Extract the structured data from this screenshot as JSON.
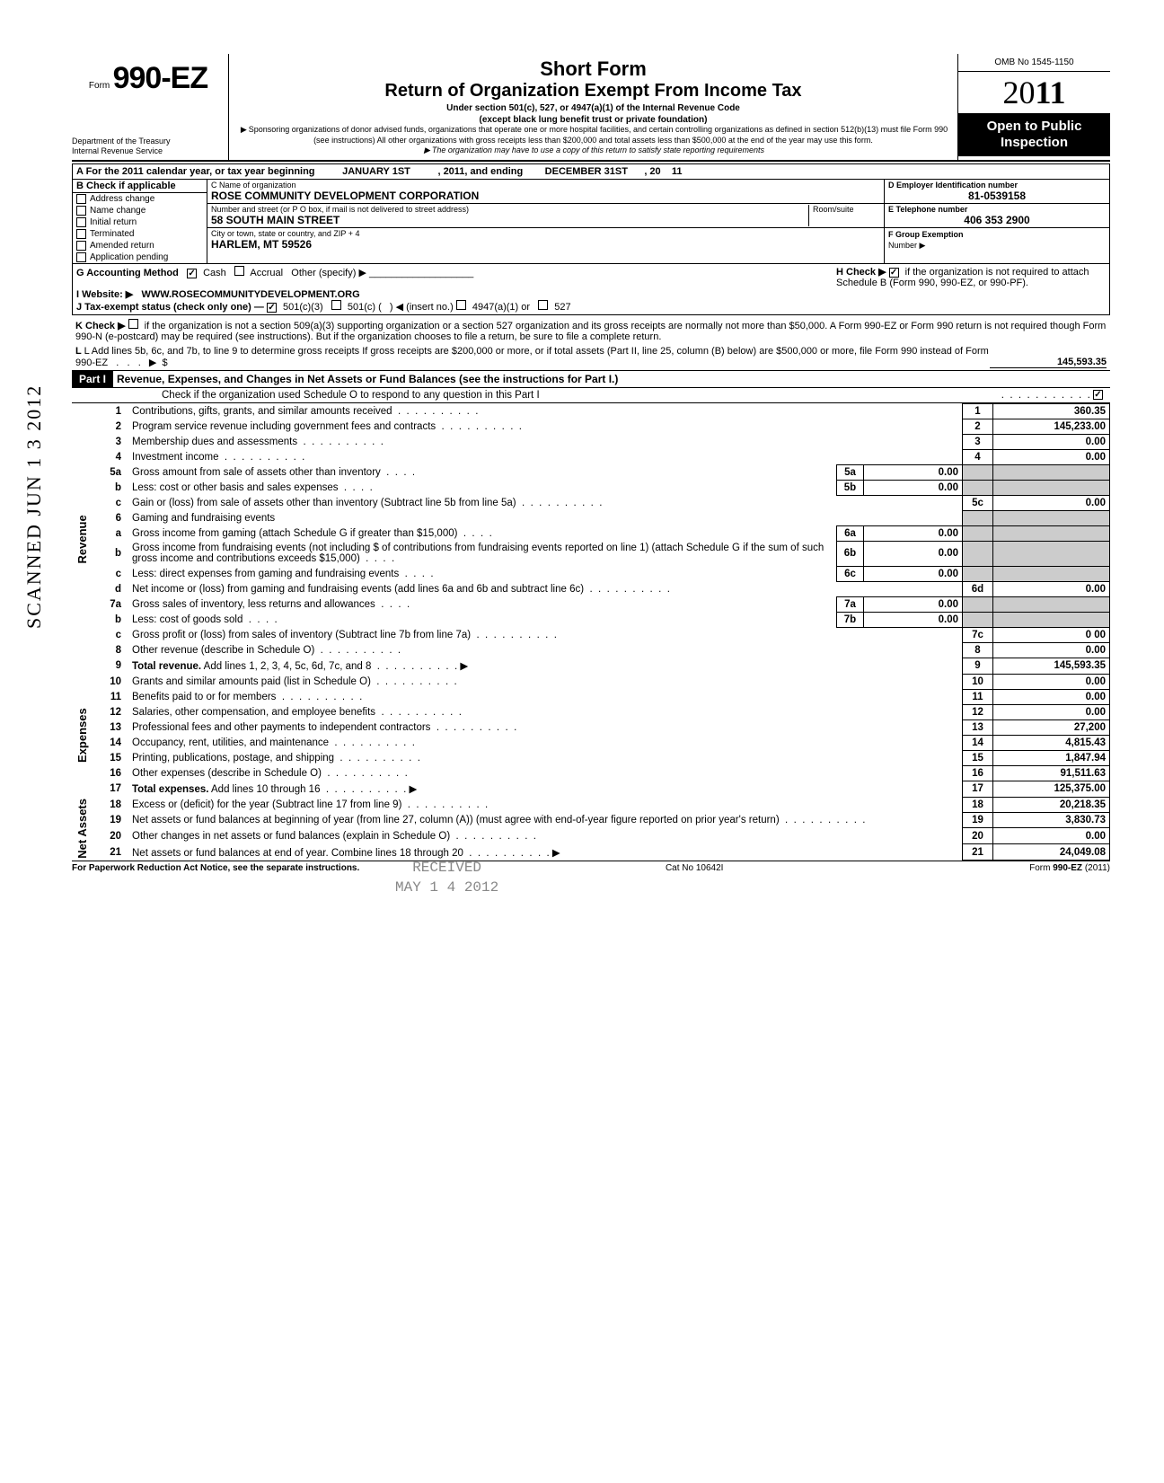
{
  "header": {
    "form_prefix": "Form",
    "form_number": "990-EZ",
    "dept1": "Department of the Treasury",
    "dept2": "Internal Revenue Service",
    "title_short": "Short Form",
    "title_main": "Return of Organization Exempt From Income Tax",
    "subtitle1": "Under section 501(c), 527, or 4947(a)(1) of the Internal Revenue Code",
    "subtitle2": "(except black lung benefit trust or private foundation)",
    "note1": "Sponsoring organizations of donor advised funds, organizations that operate one or more hospital facilities, and certain controlling organizations as defined in section 512(b)(13) must file Form 990 (see instructions) All other organizations with gross receipts less than $200,000 and total assets less than $500,000 at the end of the year may use this form.",
    "note2": "The organization may have to use a copy of this return to satisfy state reporting requirements",
    "omb": "OMB No 1545-1150",
    "year_prefix": "20",
    "year_bold": "11",
    "open_public": "Open to Public Inspection"
  },
  "section_a": {
    "line_a": "A  For the 2011 calendar year, or tax year beginning",
    "begin_date": "JANUARY 1ST",
    "mid": ", 2011, and ending",
    "end_date": "DECEMBER 31ST",
    "end_year_lbl": ", 20",
    "end_year": "11",
    "b_label": "B  Check if applicable",
    "b_items": [
      "Address change",
      "Name change",
      "Initial return",
      "Terminated",
      "Amended return",
      "Application pending"
    ],
    "c_label": "C  Name of organization",
    "c_value": "ROSE COMMUNITY DEVELOPMENT CORPORATION",
    "c_street_label": "Number and street (or P O box, if mail is not delivered to street address)",
    "c_room": "Room/suite",
    "c_street": "58 SOUTH MAIN STREET",
    "c_city_label": "City or town, state or country, and ZIP + 4",
    "c_city": "HARLEM, MT 59526",
    "d_label": "D Employer Identification number",
    "d_value": "81-0539158",
    "e_label": "E  Telephone number",
    "e_value": "406 353 2900",
    "f_label": "F  Group Exemption",
    "f_label2": "Number ▶"
  },
  "lines_ghij": {
    "g": "G  Accounting Method",
    "g_cash": "Cash",
    "g_accrual": "Accrual",
    "g_other": "Other (specify) ▶",
    "h": "H  Check ▶",
    "h_text": "if the organization is not required to attach Schedule B (Form 990, 990-EZ, or 990-PF).",
    "i": "I   Website: ▶",
    "i_val": "WWW.ROSECOMMUNITYDEVELOPMENT.ORG",
    "j": "J  Tax-exempt status (check only one) —",
    "j_501c3": "501(c)(3)",
    "j_501c": "501(c) (",
    "j_insert": ") ◀ (insert no.)",
    "j_4947": "4947(a)(1) or",
    "j_527": "527"
  },
  "k_check": "K  Check ▶",
  "k_text": "if the organization is not a section 509(a)(3) supporting organization or a section 527 organization and its gross receipts are normally not more than $50,000. A Form 990-EZ or Form 990 return is not required though Form 990-N (e-postcard) may be required (see instructions). But if the organization chooses to file a return, be sure to file a complete return.",
  "l_text": "L  Add lines 5b, 6c, and 7b, to line 9 to determine gross receipts  If gross receipts are $200,000 or more, or if total assets (Part II, line 25, column (B) below) are $500,000 or more, file Form 990 instead of Form 990-EZ",
  "l_value": "145,593.35",
  "part1": {
    "label": "Part I",
    "title": "Revenue, Expenses, and Changes in Net Assets or Fund Balances (see the instructions for Part I.)",
    "check_line": "Check if the organization used Schedule O to respond to any question in this Part I"
  },
  "sidelabels": {
    "revenue": "Revenue",
    "expenses": "Expenses",
    "netassets": "Net Assets"
  },
  "scanned": "SCANNED JUN 1 3 2012",
  "rows": [
    {
      "n": "1",
      "desc": "Contributions, gifts, grants, and similar amounts received",
      "box": "1",
      "val": "360.35"
    },
    {
      "n": "2",
      "desc": "Program service revenue including government fees and contracts",
      "box": "2",
      "val": "145,233.00"
    },
    {
      "n": "3",
      "desc": "Membership dues and assessments",
      "box": "3",
      "val": "0.00"
    },
    {
      "n": "4",
      "desc": "Investment income",
      "box": "4",
      "val": "0.00"
    },
    {
      "n": "5a",
      "desc": "Gross amount from sale of assets other than inventory",
      "ibox": "5a",
      "ival": "0.00"
    },
    {
      "n": "b",
      "desc": "Less: cost or other basis and sales expenses",
      "ibox": "5b",
      "ival": "0.00"
    },
    {
      "n": "c",
      "desc": "Gain or (loss) from sale of assets other than inventory (Subtract line 5b from line 5a)",
      "box": "5c",
      "val": "0.00"
    },
    {
      "n": "6",
      "desc": "Gaming and fundraising events"
    },
    {
      "n": "a",
      "desc": "Gross income from gaming (attach Schedule G if greater than $15,000)",
      "ibox": "6a",
      "ival": "0.00"
    },
    {
      "n": "b",
      "desc": "Gross income from fundraising events (not including  $                       of contributions from fundraising events reported on line 1) (attach Schedule G if the sum of such gross income and contributions exceeds $15,000)",
      "ibox": "6b",
      "ival": "0.00"
    },
    {
      "n": "c",
      "desc": "Less: direct expenses from gaming and fundraising events",
      "ibox": "6c",
      "ival": "0.00"
    },
    {
      "n": "d",
      "desc": "Net income or (loss) from gaming and fundraising events (add lines 6a and 6b and subtract line 6c)",
      "box": "6d",
      "val": "0.00"
    },
    {
      "n": "7a",
      "desc": "Gross sales of inventory, less returns and allowances",
      "ibox": "7a",
      "ival": "0.00"
    },
    {
      "n": "b",
      "desc": "Less: cost of goods sold",
      "ibox": "7b",
      "ival": "0.00"
    },
    {
      "n": "c",
      "desc": "Gross profit or (loss) from sales of inventory (Subtract line 7b from line 7a)",
      "box": "7c",
      "val": "0 00"
    },
    {
      "n": "8",
      "desc": "Other revenue (describe in Schedule O)",
      "box": "8",
      "val": "0.00"
    },
    {
      "n": "9",
      "desc": "Total revenue. Add lines 1, 2, 3, 4, 5c, 6d, 7c, and 8",
      "box": "9",
      "val": "145,593.35",
      "bold": true,
      "arrow": true
    },
    {
      "n": "10",
      "desc": "Grants and similar amounts paid (list in Schedule O)",
      "box": "10",
      "val": "0.00"
    },
    {
      "n": "11",
      "desc": "Benefits paid to or for members",
      "box": "11",
      "val": "0.00"
    },
    {
      "n": "12",
      "desc": "Salaries, other compensation, and employee benefits",
      "box": "12",
      "val": "0.00"
    },
    {
      "n": "13",
      "desc": "Professional fees and other payments to independent contractors",
      "box": "13",
      "val": "27,200"
    },
    {
      "n": "14",
      "desc": "Occupancy, rent, utilities, and maintenance",
      "box": "14",
      "val": "4,815.43"
    },
    {
      "n": "15",
      "desc": "Printing, publications, postage, and shipping",
      "box": "15",
      "val": "1,847.94"
    },
    {
      "n": "16",
      "desc": "Other expenses (describe in Schedule O)",
      "box": "16",
      "val": "91,511.63"
    },
    {
      "n": "17",
      "desc": "Total expenses. Add lines 10 through 16",
      "box": "17",
      "val": "125,375.00",
      "bold": true,
      "arrow": true
    },
    {
      "n": "18",
      "desc": "Excess or (deficit) for the year (Subtract line 17 from line 9)",
      "box": "18",
      "val": "20,218.35"
    },
    {
      "n": "19",
      "desc": "Net assets or fund balances at beginning of year (from line 27, column (A)) (must agree with end-of-year figure reported on prior year's return)",
      "box": "19",
      "val": "3,830.73"
    },
    {
      "n": "20",
      "desc": "Other changes in net assets or fund balances (explain in Schedule O)",
      "box": "20",
      "val": "0.00"
    },
    {
      "n": "21",
      "desc": "Net assets or fund balances at end of year. Combine lines 18 through 20",
      "box": "21",
      "val": "24,049.08",
      "arrow": true
    }
  ],
  "footer": {
    "left": "For Paperwork Reduction Act Notice, see the separate instructions.",
    "center": "Cat No 10642I",
    "right": "Form 990-EZ (2011)"
  },
  "watermark": "RECEIVED\nMAY 1 4 2012"
}
